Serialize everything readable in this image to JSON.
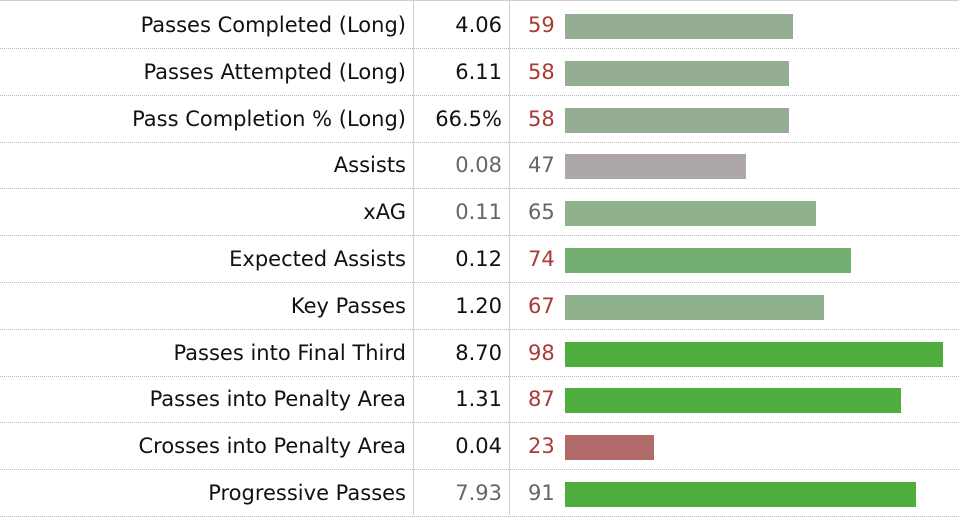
{
  "chart_data": {
    "type": "bar",
    "percentile_scale": [
      0,
      100
    ],
    "colors": {
      "high_bar": "#4ead3c",
      "mid_high_bar": "#74ae70",
      "mid_bar": "#95ae93",
      "avg_bar": "#aea7a7",
      "low_bar": "#b06a6a",
      "pct_strong": "#a93a35",
      "pct_normal": "#666666",
      "value_strong": "#111111",
      "value_normal": "#666666"
    },
    "rows": [
      {
        "stat": "Passes Completed (Long)",
        "value": "4.06",
        "percentile": 59,
        "bar_color": "#95ae93",
        "emphasis": true
      },
      {
        "stat": "Passes Attempted (Long)",
        "value": "6.11",
        "percentile": 58,
        "bar_color": "#95ae93",
        "emphasis": true
      },
      {
        "stat": "Pass Completion % (Long)",
        "value": "66.5%",
        "percentile": 58,
        "bar_color": "#95ae93",
        "emphasis": true
      },
      {
        "stat": "Assists",
        "value": "0.08",
        "percentile": 47,
        "bar_color": "#aea7a7",
        "emphasis": false
      },
      {
        "stat": "xAG",
        "value": "0.11",
        "percentile": 65,
        "bar_color": "#8fb28c",
        "emphasis": false
      },
      {
        "stat": "Expected Assists",
        "value": "0.12",
        "percentile": 74,
        "bar_color": "#74ae70",
        "emphasis": true
      },
      {
        "stat": "Key Passes",
        "value": "1.20",
        "percentile": 67,
        "bar_color": "#8fb28c",
        "emphasis": true
      },
      {
        "stat": "Passes into Final Third",
        "value": "8.70",
        "percentile": 98,
        "bar_color": "#4ead3c",
        "emphasis": true
      },
      {
        "stat": "Passes into Penalty Area",
        "value": "1.31",
        "percentile": 87,
        "bar_color": "#4ead3c",
        "emphasis": true
      },
      {
        "stat": "Crosses into Penalty Area",
        "value": "0.04",
        "percentile": 23,
        "bar_color": "#b06a6a",
        "emphasis": true
      },
      {
        "stat": "Progressive Passes",
        "value": "7.93",
        "percentile": 91,
        "bar_color": "#4ead3c",
        "emphasis": false
      }
    ]
  }
}
